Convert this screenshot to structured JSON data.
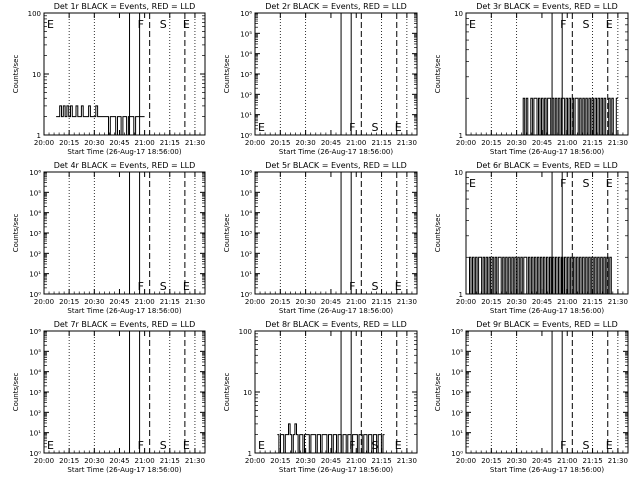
{
  "chart_data": [
    {
      "type": "line",
      "title": "Det 1r BLACK = Events, RED = LLD",
      "xlabel": "Start Time (26-Aug-17 18:56:00)",
      "ylabel": "Counts/sec",
      "yscale": "log",
      "ylim": [
        1,
        100
      ],
      "ytick_labels": [
        "1",
        "10",
        "100"
      ],
      "x_ticks": [
        "20:00",
        "20:15",
        "20:30",
        "20:45",
        "21:00",
        "21:15",
        "21:30"
      ],
      "series": [
        {
          "values": [
            2,
            2,
            3,
            2,
            3,
            2,
            3,
            2,
            3,
            2,
            2,
            3,
            2,
            2,
            3,
            2,
            2,
            2,
            3,
            2,
            2,
            2,
            3,
            2,
            2,
            2,
            2,
            2,
            2,
            1,
            2,
            2,
            2,
            1,
            2,
            2,
            1,
            2,
            2,
            1,
            2,
            2,
            2,
            1,
            2,
            2,
            2,
            2,
            2
          ]
        }
      ],
      "series_x_range": [
        20.12,
        21.0
      ],
      "markers": [
        "E",
        "F",
        "S",
        "E"
      ]
    },
    {
      "type": "line",
      "title": "Det 2r BLACK = Events, RED = LLD",
      "xlabel": "Start Time (26-Aug-17 18:56:00)",
      "ylabel": "Counts/sec",
      "yscale": "log",
      "ylim": [
        1,
        1000000
      ],
      "ytick_labels": [
        "10⁰",
        "10¹",
        "10²",
        "10³",
        "10⁴",
        "10⁵",
        "10⁶"
      ],
      "x_ticks": [
        "20:00",
        "20:15",
        "20:30",
        "20:45",
        "21:00",
        "21:15",
        "21:30"
      ],
      "series": [],
      "markers": [
        "E",
        "F",
        "S",
        "E"
      ]
    },
    {
      "type": "line",
      "title": "Det 3r BLACK = Events, RED = LLD",
      "xlabel": "Start Time (26-Aug-17 18:56:00)",
      "ylabel": "Counts/sec",
      "yscale": "log",
      "ylim": [
        1,
        10
      ],
      "ytick_labels": [
        "1",
        "10"
      ],
      "x_ticks": [
        "20:00",
        "20:15",
        "20:30",
        "20:45",
        "21:00",
        "21:15",
        "21:30"
      ],
      "series": [
        {
          "values": [
            1,
            2,
            1,
            2,
            1,
            1,
            2,
            1,
            2,
            2,
            1,
            2,
            1,
            2,
            1,
            2,
            1,
            2,
            2,
            1,
            2,
            1,
            2,
            1,
            2,
            1,
            2,
            2,
            1,
            2,
            1,
            2,
            1,
            2,
            1,
            2,
            2,
            1,
            2,
            1,
            2,
            1,
            2,
            1,
            2,
            1,
            2,
            1,
            2,
            1,
            2,
            1,
            2,
            1,
            2,
            1,
            1,
            2,
            1,
            2,
            1,
            1,
            2
          ]
        }
      ],
      "series_x_range": [
        20.55,
        21.5
      ],
      "markers": [
        "E",
        "F",
        "S",
        "E"
      ]
    },
    {
      "type": "line",
      "title": "Det 4r BLACK = Events, RED = LLD",
      "xlabel": "Start Time (26-Aug-17 18:56:00)",
      "ylabel": "Counts/sec",
      "yscale": "log",
      "ylim": [
        1,
        1000000
      ],
      "ytick_labels": [
        "10⁰",
        "10¹",
        "10²",
        "10³",
        "10⁴",
        "10⁵",
        "10⁶"
      ],
      "x_ticks": [
        "20:00",
        "20:15",
        "20:30",
        "20:45",
        "21:00",
        "21:15",
        "21:30"
      ],
      "series": [],
      "markers": [
        "F",
        "S",
        "E"
      ]
    },
    {
      "type": "line",
      "title": "Det 5r BLACK = Events, RED = LLD",
      "xlabel": "Start Time (26-Aug-17 18:56:00)",
      "ylabel": "Counts/sec",
      "yscale": "log",
      "ylim": [
        1,
        1000000
      ],
      "ytick_labels": [
        "10⁰",
        "10¹",
        "10²",
        "10³",
        "10⁴",
        "10⁵",
        "10⁶"
      ],
      "x_ticks": [
        "20:00",
        "20:15",
        "20:30",
        "20:45",
        "21:00",
        "21:15",
        "21:30"
      ],
      "series": [],
      "markers": [
        "F",
        "S",
        "E"
      ]
    },
    {
      "type": "line",
      "title": "Det 6r BLACK = Events, RED = LLD",
      "xlabel": "Start Time (26-Aug-17 18:56:00)",
      "ylabel": "Counts/sec",
      "yscale": "log",
      "ylim": [
        1,
        10
      ],
      "ytick_labels": [
        "1",
        "10"
      ],
      "x_ticks": [
        "20:00",
        "20:15",
        "20:30",
        "20:45",
        "21:00",
        "21:15",
        "21:30"
      ],
      "series": [
        {
          "values": [
            1,
            2,
            1,
            2,
            1,
            2,
            1,
            2,
            2,
            1,
            2,
            1,
            2,
            1,
            2,
            1,
            2,
            1,
            2,
            1,
            2,
            2,
            1,
            2,
            1,
            2,
            1,
            2,
            1,
            2,
            1,
            2,
            1,
            2,
            1,
            2,
            1,
            2,
            2,
            1,
            2,
            1,
            2,
            1,
            2,
            1,
            2,
            1,
            2,
            1,
            2,
            1,
            2,
            1,
            2,
            1,
            2,
            1,
            2,
            1,
            2,
            1,
            2,
            1,
            2,
            1,
            2,
            1,
            2,
            1,
            2,
            1,
            2,
            1,
            2,
            1,
            2,
            1,
            2,
            1,
            2,
            1,
            2,
            1,
            2,
            1,
            2,
            1,
            2,
            1,
            2,
            1,
            2,
            1,
            2,
            1
          ]
        }
      ],
      "series_x_range": [
        20.02,
        21.45
      ],
      "markers": [
        "E",
        "F",
        "S",
        "E"
      ]
    },
    {
      "type": "line",
      "title": "Det 7r BLACK = Events, RED = LLD",
      "xlabel": "Start Time (26-Aug-17 18:56:00)",
      "ylabel": "Counts/sec",
      "yscale": "log",
      "ylim": [
        1,
        1000000
      ],
      "ytick_labels": [
        "10⁰",
        "10¹",
        "10²",
        "10³",
        "10⁴",
        "10⁵",
        "10⁶"
      ],
      "x_ticks": [
        "20:00",
        "20:15",
        "20:30",
        "20:45",
        "21:00",
        "21:15",
        "21:30"
      ],
      "series": [],
      "markers": [
        "E",
        "F",
        "S",
        "E"
      ]
    },
    {
      "type": "line",
      "title": "Det 8r BLACK = Events, RED = LLD",
      "xlabel": "Start Time (26-Aug-17 18:56:00)",
      "ylabel": "Counts/sec",
      "yscale": "log",
      "ylim": [
        1,
        100
      ],
      "ytick_labels": [
        "1",
        "10",
        "100"
      ],
      "x_ticks": [
        "20:00",
        "20:15",
        "20:30",
        "20:45",
        "21:00",
        "21:15",
        "21:30"
      ],
      "series": [
        {
          "values": [
            2,
            1,
            2,
            2,
            1,
            2,
            2,
            3,
            2,
            1,
            2,
            3,
            2,
            1,
            2,
            2,
            1,
            2,
            2,
            2,
            1,
            2,
            2,
            2,
            1,
            2,
            2,
            1,
            2,
            2,
            2,
            1,
            2,
            2,
            1,
            2,
            2,
            1,
            2,
            2,
            1,
            2,
            2,
            1,
            2,
            2,
            1,
            2,
            2,
            2,
            1,
            2,
            2,
            1,
            2,
            2,
            1,
            2,
            2,
            1,
            2,
            2,
            1,
            2,
            2,
            1,
            2
          ]
        }
      ],
      "series_x_range": [
        20.22,
        21.28
      ],
      "markers": [
        "E",
        "F",
        "S",
        "E"
      ]
    },
    {
      "type": "line",
      "title": "Det 9r BLACK = Events, RED = LLD",
      "xlabel": "Start Time (26-Aug-17 18:56:00)",
      "ylabel": "Counts/sec",
      "yscale": "log",
      "ylim": [
        1,
        1000000
      ],
      "ytick_labels": [
        "10⁰",
        "10¹",
        "10²",
        "10³",
        "10⁴",
        "10⁵",
        "10⁶"
      ],
      "x_ticks": [
        "20:00",
        "20:15",
        "20:30",
        "20:45",
        "21:00",
        "21:15",
        "21:30"
      ],
      "series": [],
      "markers": [
        "F",
        "S",
        "E"
      ]
    }
  ]
}
